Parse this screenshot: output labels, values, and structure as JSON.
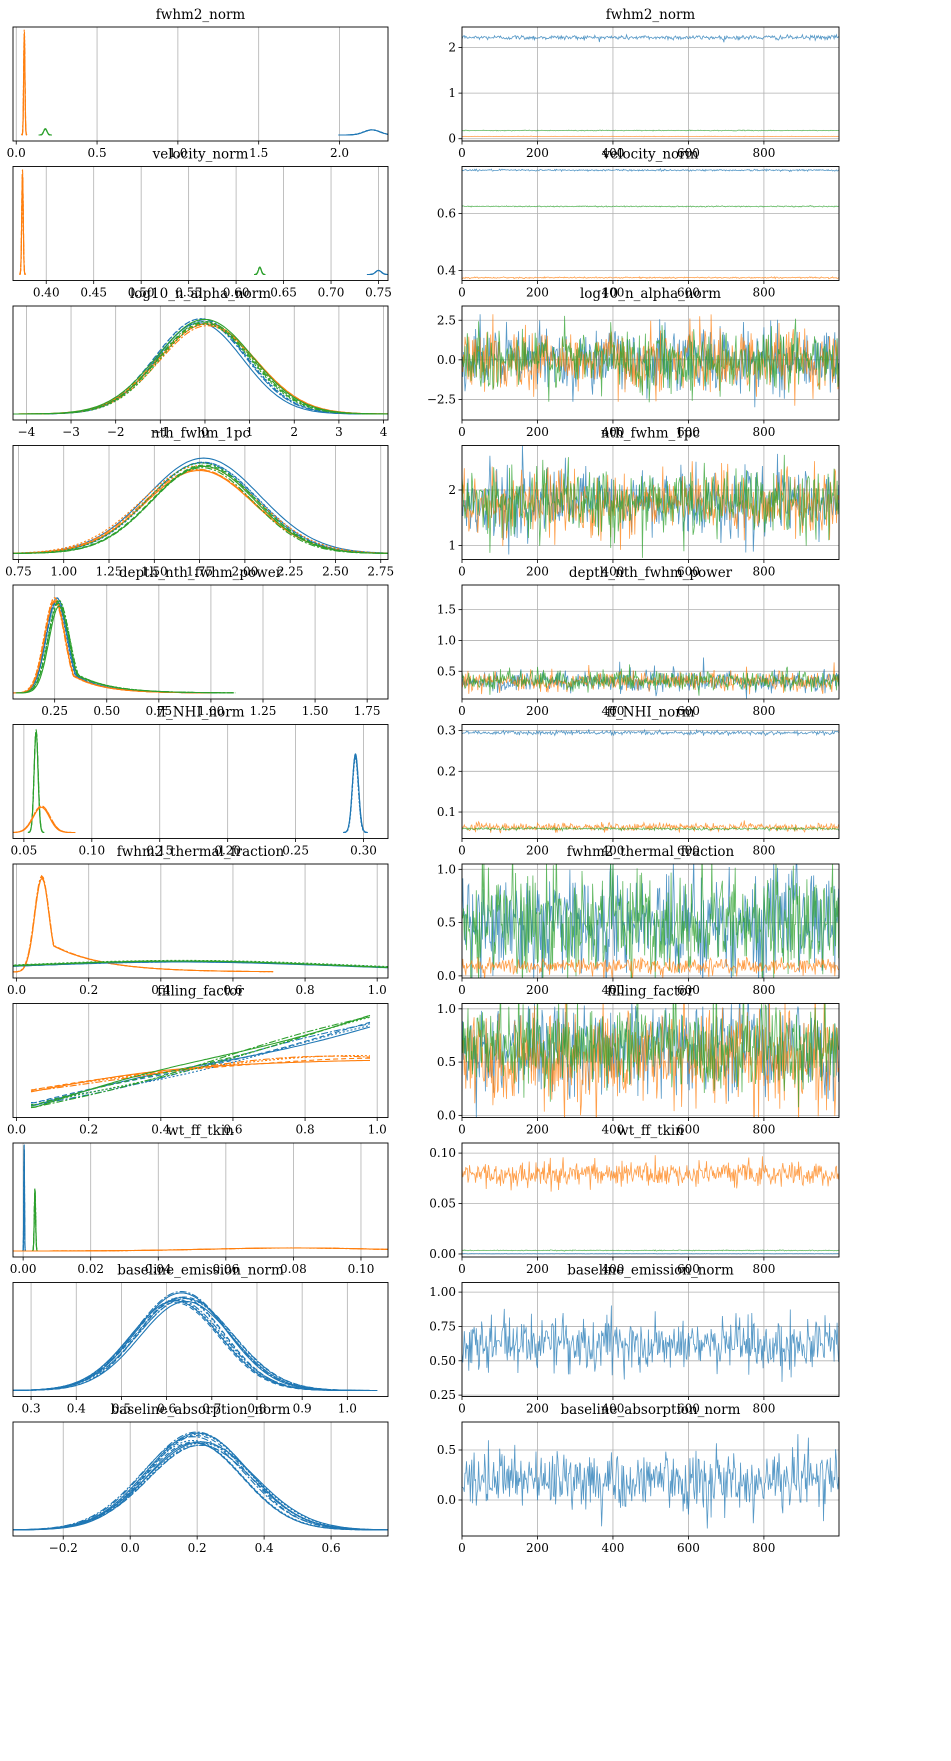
{
  "figure": {
    "kind": "ArviZ trace plot"
  },
  "colors": {
    "chain_0": "#1f77b4",
    "chain_1": "#ff7f0e",
    "chain_2": "#2ca02c",
    "grid": "#b0b0b0"
  },
  "chart_data": [
    {
      "type": "area",
      "title": "fwhm2_norm",
      "xlim": [
        -0.02,
        2.3
      ],
      "xticks": [
        "0.0",
        "0.5",
        "1.0",
        "1.5",
        "2.0"
      ],
      "xtick_values": [
        0,
        0.5,
        1,
        1.5,
        2
      ],
      "series": [
        {
          "color": "#ff7f0e",
          "center": 0.05,
          "spread": 0.004,
          "height": 1.0
        },
        {
          "color": "#2ca02c",
          "center": 0.18,
          "spread": 0.01,
          "height": 0.06
        },
        {
          "color": "#1f77b4",
          "center": 2.2,
          "spread": 0.05,
          "height": 0.05
        }
      ]
    },
    {
      "type": "line",
      "title": "fwhm2_norm",
      "xlim": [
        0,
        999
      ],
      "ylim": [
        -0.05,
        2.45
      ],
      "xticks": [
        "0",
        "200",
        "400",
        "600",
        "800"
      ],
      "xtick_values": [
        0,
        200,
        400,
        600,
        800
      ],
      "yticks": [
        "0",
        "1",
        "2"
      ],
      "ytick_values": [
        0,
        1,
        2
      ],
      "series": [
        {
          "color": "#1f77b4",
          "mean": 2.22,
          "sd": 0.025
        },
        {
          "color": "#2ca02c",
          "mean": 0.18,
          "sd": 0.004
        },
        {
          "color": "#ff7f0e",
          "mean": 0.05,
          "sd": 0.002
        }
      ]
    },
    {
      "type": "area",
      "title": "velocity_norm",
      "xlim": [
        0.365,
        0.76
      ],
      "xticks": [
        "0.40",
        "0.45",
        "0.50",
        "0.55",
        "0.60",
        "0.65",
        "0.70",
        "0.75"
      ],
      "xtick_values": [
        0.4,
        0.45,
        0.5,
        0.55,
        0.6,
        0.65,
        0.7,
        0.75
      ],
      "series": [
        {
          "color": "#ff7f0e",
          "center": 0.375,
          "spread": 0.0008,
          "height": 1.0
        },
        {
          "color": "#2ca02c",
          "center": 0.625,
          "spread": 0.0015,
          "height": 0.07
        },
        {
          "color": "#1f77b4",
          "center": 0.75,
          "spread": 0.003,
          "height": 0.04
        }
      ]
    },
    {
      "type": "line",
      "title": "velocity_norm",
      "xlim": [
        0,
        999
      ],
      "ylim": [
        0.365,
        0.765
      ],
      "xticks": [
        "0",
        "200",
        "400",
        "600",
        "800"
      ],
      "xtick_values": [
        0,
        200,
        400,
        600,
        800
      ],
      "yticks": [
        "0.4",
        "0.6"
      ],
      "ytick_values": [
        0.4,
        0.6
      ],
      "series": [
        {
          "color": "#1f77b4",
          "mean": 0.752,
          "sd": 0.0015
        },
        {
          "color": "#2ca02c",
          "mean": 0.625,
          "sd": 0.001
        },
        {
          "color": "#ff7f0e",
          "mean": 0.375,
          "sd": 0.0012
        }
      ]
    },
    {
      "type": "area",
      "title": "log10_n_alpha_norm",
      "xlim": [
        -4.3,
        4.1
      ],
      "xticks": [
        "−4",
        "−3",
        "−2",
        "−1",
        "0",
        "1",
        "2",
        "3",
        "4"
      ],
      "xtick_values": [
        -4,
        -3,
        -2,
        -1,
        0,
        1,
        2,
        3,
        4
      ],
      "series": [
        {
          "color": "#1f77b4",
          "center": -0.1,
          "spread": 1.0,
          "height": 0.92
        },
        {
          "color": "#ff7f0e",
          "center": 0.05,
          "spread": 1.08,
          "height": 0.88
        },
        {
          "color": "#2ca02c",
          "center": 0.0,
          "spread": 1.04,
          "height": 0.9
        }
      ]
    },
    {
      "type": "line",
      "title": "log10_n_alpha_norm",
      "xlim": [
        0,
        999
      ],
      "ylim": [
        -3.8,
        3.4
      ],
      "xticks": [
        "0",
        "200",
        "400",
        "600",
        "800"
      ],
      "xtick_values": [
        0,
        200,
        400,
        600,
        800
      ],
      "yticks": [
        "−2.5",
        "0.0",
        "2.5"
      ],
      "ytick_values": [
        -2.5,
        0,
        2.5
      ],
      "series": [
        {
          "color": "#1f77b4",
          "mean": 0,
          "sd": 1.0
        },
        {
          "color": "#ff7f0e",
          "mean": 0,
          "sd": 1.0
        },
        {
          "color": "#2ca02c",
          "mean": 0,
          "sd": 1.0
        }
      ]
    },
    {
      "type": "area",
      "title": "nth_fwhm_1pc",
      "xlim": [
        0.72,
        2.79
      ],
      "xticks": [
        "0.75",
        "1.00",
        "1.25",
        "1.50",
        "1.75",
        "2.00",
        "2.25",
        "2.50",
        "2.75"
      ],
      "xtick_values": [
        0.75,
        1,
        1.25,
        1.5,
        1.75,
        2,
        2.25,
        2.5,
        2.75
      ],
      "series": [
        {
          "color": "#1f77b4",
          "center": 1.77,
          "spread": 0.3,
          "height": 0.9
        },
        {
          "color": "#ff7f0e",
          "center": 1.75,
          "spread": 0.31,
          "height": 0.84
        },
        {
          "color": "#2ca02c",
          "center": 1.77,
          "spread": 0.29,
          "height": 0.87
        }
      ]
    },
    {
      "type": "line",
      "title": "nth_fwhm_1pc",
      "xlim": [
        0,
        999
      ],
      "ylim": [
        0.75,
        2.8
      ],
      "xticks": [
        "0",
        "200",
        "400",
        "600",
        "800"
      ],
      "xtick_values": [
        0,
        200,
        400,
        600,
        800
      ],
      "yticks": [
        "1",
        "2"
      ],
      "ytick_values": [
        1,
        2
      ],
      "series": [
        {
          "color": "#1f77b4",
          "mean": 1.77,
          "sd": 0.29
        },
        {
          "color": "#ff7f0e",
          "mean": 1.75,
          "sd": 0.3
        },
        {
          "color": "#2ca02c",
          "mean": 1.77,
          "sd": 0.29
        }
      ]
    },
    {
      "type": "area",
      "title": "depth_nth_fwhm_power",
      "xlim": [
        0.05,
        1.85
      ],
      "xticks": [
        "0.25",
        "0.50",
        "0.75",
        "1.00",
        "1.25",
        "1.50",
        "1.75"
      ],
      "xtick_values": [
        0.25,
        0.5,
        0.75,
        1,
        1.25,
        1.5,
        1.75
      ],
      "series": [
        {
          "color": "#1f77b4",
          "center": 0.26,
          "spread": 0.05,
          "height": 0.9,
          "tail": 0.14
        },
        {
          "color": "#ff7f0e",
          "center": 0.25,
          "spread": 0.05,
          "height": 0.93,
          "tail": 0.14
        },
        {
          "color": "#2ca02c",
          "center": 0.27,
          "spread": 0.05,
          "height": 0.88,
          "tail": 0.16
        }
      ]
    },
    {
      "type": "line",
      "title": "depth_nth_fwhm_power",
      "xlim": [
        0,
        999
      ],
      "ylim": [
        0.05,
        1.9
      ],
      "xticks": [
        "0",
        "200",
        "400",
        "600",
        "800"
      ],
      "xtick_values": [
        0,
        200,
        400,
        600,
        800
      ],
      "yticks": [
        "0.5",
        "1.0",
        "1.5"
      ],
      "ytick_values": [
        0.5,
        1,
        1.5
      ],
      "series": [
        {
          "color": "#1f77b4",
          "mean": 0.34,
          "sd": 0.08,
          "spike": 0.9
        },
        {
          "color": "#ff7f0e",
          "mean": 0.33,
          "sd": 0.08,
          "spike": 0.7
        },
        {
          "color": "#2ca02c",
          "mean": 0.35,
          "sd": 0.08,
          "spike": 1.75
        }
      ]
    },
    {
      "type": "area",
      "title": "ff_NHI_norm",
      "xlim": [
        0.042,
        0.318
      ],
      "xticks": [
        "0.05",
        "0.10",
        "0.15",
        "0.20",
        "0.25",
        "0.30"
      ],
      "xtick_values": [
        0.05,
        0.1,
        0.15,
        0.2,
        0.25,
        0.3
      ],
      "series": [
        {
          "color": "#2ca02c",
          "center": 0.059,
          "spread": 0.0015,
          "height": 1.0
        },
        {
          "color": "#ff7f0e",
          "center": 0.063,
          "spread": 0.006,
          "height": 0.25
        },
        {
          "color": "#1f77b4",
          "center": 0.294,
          "spread": 0.0022,
          "height": 0.75
        }
      ]
    },
    {
      "type": "line",
      "title": "ff_NHI_norm",
      "xlim": [
        0,
        999
      ],
      "ylim": [
        0.035,
        0.315
      ],
      "xticks": [
        "0",
        "200",
        "400",
        "600",
        "800"
      ],
      "xtick_values": [
        0,
        200,
        400,
        600,
        800
      ],
      "yticks": [
        "0.1",
        "0.2",
        "0.3"
      ],
      "ytick_values": [
        0.1,
        0.2,
        0.3
      ],
      "series": [
        {
          "color": "#1f77b4",
          "mean": 0.295,
          "sd": 0.0025
        },
        {
          "color": "#ff7f0e",
          "mean": 0.063,
          "sd": 0.005
        },
        {
          "color": "#2ca02c",
          "mean": 0.059,
          "sd": 0.0015
        }
      ]
    },
    {
      "type": "area",
      "title": "fwhm2_thermal_fraction",
      "xlim": [
        -0.01,
        1.03
      ],
      "xticks": [
        "0.0",
        "0.2",
        "0.4",
        "0.6",
        "0.8",
        "1.0"
      ],
      "xtick_values": [
        0,
        0.2,
        0.4,
        0.6,
        0.8,
        1.0
      ],
      "series": [
        {
          "color": "#ff7f0e",
          "center": 0.07,
          "spread": 0.02,
          "height": 0.92,
          "tail": 0.14
        },
        {
          "color": "#1f77b4",
          "center": 0.45,
          "spread": 0.45,
          "height": 0.1
        },
        {
          "color": "#2ca02c",
          "center": 0.45,
          "spread": 0.45,
          "height": 0.11
        }
      ]
    },
    {
      "type": "line",
      "title": "fwhm2_thermal_fraction",
      "xlim": [
        0,
        999
      ],
      "ylim": [
        -0.02,
        1.05
      ],
      "xticks": [
        "0",
        "200",
        "400",
        "600",
        "800"
      ],
      "xtick_values": [
        0,
        200,
        400,
        600,
        800
      ],
      "yticks": [
        "0.0",
        "0.5",
        "1.0"
      ],
      "ytick_values": [
        0,
        0.5,
        1.0
      ],
      "series": [
        {
          "color": "#1f77b4",
          "mean": 0.5,
          "sd": 0.25
        },
        {
          "color": "#2ca02c",
          "mean": 0.5,
          "sd": 0.25
        },
        {
          "color": "#ff7f0e",
          "mean": 0.09,
          "sd": 0.04
        }
      ]
    },
    {
      "type": "area",
      "title": "filling_factor",
      "xlim": [
        -0.01,
        1.03
      ],
      "xticks": [
        "0.0",
        "0.2",
        "0.4",
        "0.6",
        "0.8",
        "1.0"
      ],
      "xtick_values": [
        0,
        0.2,
        0.4,
        0.6,
        0.8,
        1.0
      ],
      "series": [
        {
          "color": "#1f77b4",
          "shape": "ramp",
          "start": 0.06,
          "end": 0.85
        },
        {
          "color": "#ff7f0e",
          "shape": "ramp",
          "start": 0.2,
          "end": 0.52
        },
        {
          "color": "#2ca02c",
          "shape": "ramp",
          "start": 0.04,
          "end": 0.94
        }
      ]
    },
    {
      "type": "line",
      "title": "filling_factor",
      "xlim": [
        0,
        999
      ],
      "ylim": [
        -0.02,
        1.05
      ],
      "xticks": [
        "0",
        "200",
        "400",
        "600",
        "800"
      ],
      "xtick_values": [
        0,
        200,
        400,
        600,
        800
      ],
      "yticks": [
        "0.0",
        "0.5",
        "1.0"
      ],
      "ytick_values": [
        0,
        0.5,
        1.0
      ],
      "series": [
        {
          "color": "#1f77b4",
          "mean": 0.62,
          "sd": 0.22
        },
        {
          "color": "#ff7f0e",
          "mean": 0.55,
          "sd": 0.25
        },
        {
          "color": "#2ca02c",
          "mean": 0.65,
          "sd": 0.2
        }
      ]
    },
    {
      "type": "area",
      "title": "wt_ff_tkin",
      "xlim": [
        -0.003,
        0.108
      ],
      "xticks": [
        "0.00",
        "0.02",
        "0.04",
        "0.06",
        "0.08",
        "0.10"
      ],
      "xtick_values": [
        0,
        0.02,
        0.04,
        0.06,
        0.08,
        0.1
      ],
      "series": [
        {
          "color": "#1f77b4",
          "center": 0.0003,
          "spread": 0.0001,
          "height": 1.0
        },
        {
          "color": "#2ca02c",
          "center": 0.0035,
          "spread": 0.0002,
          "height": 0.6
        },
        {
          "color": "#ff7f0e",
          "center": 0.08,
          "spread": 0.025,
          "height": 0.03
        }
      ]
    },
    {
      "type": "line",
      "title": "wt_ff_tkin",
      "xlim": [
        0,
        999
      ],
      "ylim": [
        -0.003,
        0.11
      ],
      "xticks": [
        "0",
        "200",
        "400",
        "600",
        "800"
      ],
      "xtick_values": [
        0,
        200,
        400,
        600,
        800
      ],
      "yticks": [
        "0.00",
        "0.05",
        "0.10"
      ],
      "ytick_values": [
        0,
        0.05,
        0.1
      ],
      "series": [
        {
          "color": "#ff7f0e",
          "mean": 0.079,
          "sd": 0.006
        },
        {
          "color": "#2ca02c",
          "mean": 0.0035,
          "sd": 0.0002
        },
        {
          "color": "#1f77b4",
          "mean": 0.0003,
          "sd": 0.0001
        }
      ]
    },
    {
      "type": "area",
      "title": "baseline_emission_norm",
      "xlim": [
        0.26,
        1.09
      ],
      "xticks": [
        "0.3",
        "0.4",
        "0.5",
        "0.6",
        "0.7",
        "0.8",
        "0.9",
        "1.0"
      ],
      "xtick_values": [
        0.3,
        0.4,
        0.5,
        0.6,
        0.7,
        0.8,
        0.9,
        1.0
      ],
      "series": [
        {
          "color": "#1f77b4",
          "center": 0.63,
          "spread": 0.1,
          "height": 0.95
        },
        {
          "color": "#1f77b4",
          "center": 0.64,
          "spread": 0.105,
          "height": 0.9
        },
        {
          "color": "#1f77b4",
          "center": 0.62,
          "spread": 0.1,
          "height": 0.88
        }
      ]
    },
    {
      "type": "line",
      "title": "baseline_emission_norm",
      "xlim": [
        0,
        999
      ],
      "ylim": [
        0.24,
        1.07
      ],
      "xticks": [
        "0",
        "200",
        "400",
        "600",
        "800"
      ],
      "xtick_values": [
        0,
        200,
        400,
        600,
        800
      ],
      "yticks": [
        "0.25",
        "0.50",
        "0.75",
        "1.00"
      ],
      "ytick_values": [
        0.25,
        0.5,
        0.75,
        1.0
      ],
      "series": [
        {
          "color": "#1f77b4",
          "mean": 0.63,
          "sd": 0.1
        }
      ]
    },
    {
      "type": "area",
      "title": "baseline_absorption_norm",
      "xlim": [
        -0.35,
        0.77
      ],
      "xticks": [
        "−0.2",
        "0.0",
        "0.2",
        "0.4",
        "0.6"
      ],
      "xtick_values": [
        -0.2,
        0,
        0.2,
        0.4,
        0.6
      ],
      "series": [
        {
          "color": "#1f77b4",
          "center": 0.2,
          "spread": 0.15,
          "height": 0.93
        },
        {
          "color": "#1f77b4",
          "center": 0.21,
          "spread": 0.16,
          "height": 0.86
        },
        {
          "color": "#1f77b4",
          "center": 0.19,
          "spread": 0.15,
          "height": 0.89
        }
      ]
    },
    {
      "type": "line",
      "title": "baseline_absorption_norm",
      "xlim": [
        0,
        999
      ],
      "ylim": [
        -0.36,
        0.78
      ],
      "xticks": [
        "0",
        "200",
        "400",
        "600",
        "800"
      ],
      "xtick_values": [
        0,
        200,
        400,
        600,
        800
      ],
      "yticks": [
        "0.0",
        "0.5"
      ],
      "ytick_values": [
        0,
        0.5
      ],
      "series": [
        {
          "color": "#1f77b4",
          "mean": 0.2,
          "sd": 0.15
        }
      ]
    }
  ]
}
